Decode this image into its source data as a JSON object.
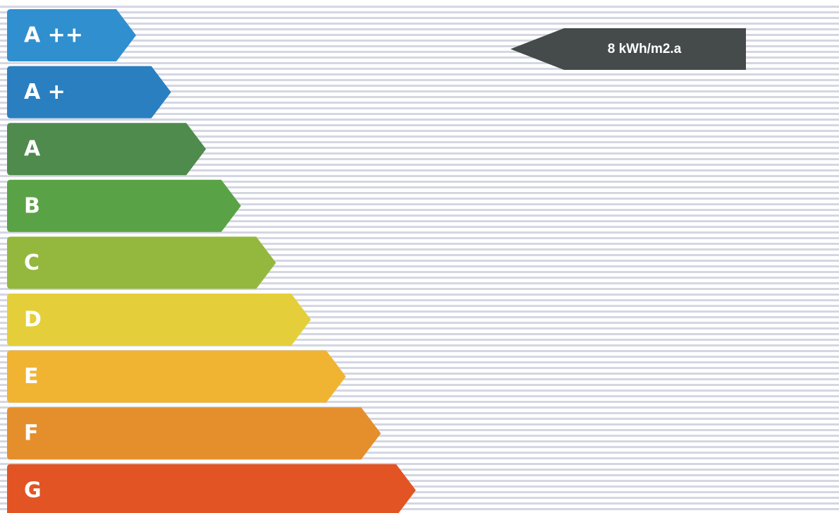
{
  "classes": [
    {
      "label": "A ++",
      "color": "#2f8fcf"
    },
    {
      "label": "A +",
      "color": "#2a7fc0"
    },
    {
      "label": "A",
      "color": "#4e8b4c"
    },
    {
      "label": "B",
      "color": "#5aa246"
    },
    {
      "label": "C",
      "color": "#94b83d"
    },
    {
      "label": "D",
      "color": "#e4cf3a"
    },
    {
      "label": "E",
      "color": "#f1b332"
    },
    {
      "label": "F",
      "color": "#e58f2c"
    },
    {
      "label": "G",
      "color": "#e25424"
    }
  ],
  "marker": {
    "value": "8 kWh/m2.a",
    "class_index": 0,
    "color": "#454a4a"
  },
  "rule_color": "#d4d7e2"
}
